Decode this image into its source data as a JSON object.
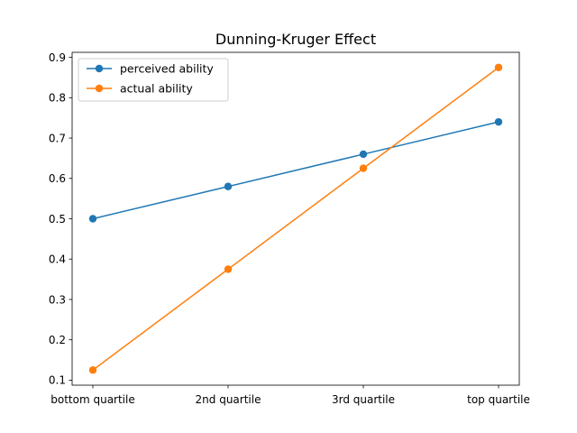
{
  "chart_data": {
    "type": "line",
    "title": "Dunning-Kruger Effect",
    "xlabel": "",
    "ylabel": "",
    "categories": [
      "bottom quartile",
      "2nd quartile",
      "3rd quartile",
      "top quartile"
    ],
    "series": [
      {
        "name": "perceived ability",
        "color": "#1f77b4",
        "marker": "circle",
        "values": [
          0.5,
          0.58,
          0.66,
          0.74
        ]
      },
      {
        "name": "actual ability",
        "color": "#ff7f0e",
        "marker": "circle",
        "values": [
          0.125,
          0.375,
          0.625,
          0.875
        ]
      }
    ],
    "yticks": [
      "0.1",
      "0.2",
      "0.3",
      "0.4",
      "0.5",
      "0.6",
      "0.7",
      "0.8",
      "0.9"
    ],
    "ylim": [
      0.0875,
      0.9125
    ],
    "grid": false,
    "legend_position": "top-left"
  }
}
